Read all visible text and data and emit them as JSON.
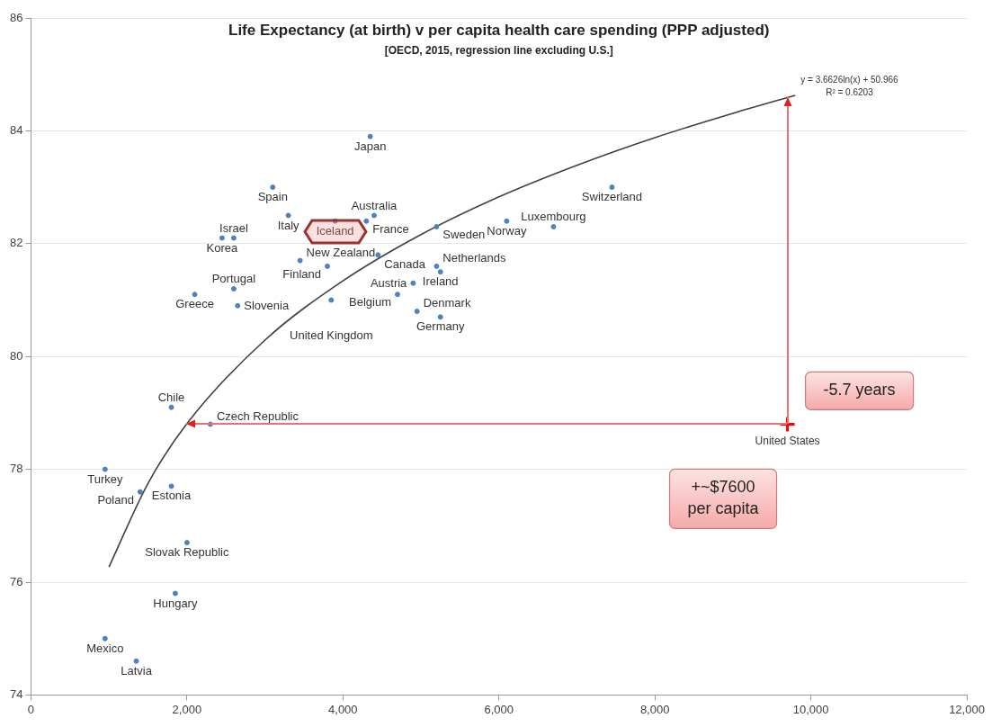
{
  "chart_data": {
    "type": "scatter",
    "title": "Life Expectancy (at birth) v per capita health care spending (PPP adjusted)",
    "subtitle": "[OECD, 2015, regression line excluding U.S.]",
    "series": [
      {
        "type": "scatter",
        "color": "#4f81bd",
        "marker": "circle",
        "x": [
          4350,
          3100,
          3300,
          3900,
          4400,
          4300,
          5200,
          6100,
          6700,
          7450,
          2450,
          2600,
          3450,
          3800,
          4450,
          5200,
          5250,
          4900,
          4700,
          3850,
          4950,
          5250,
          2600,
          2100,
          2650,
          1800,
          2300,
          950,
          1800,
          1400,
          2000,
          1850,
          950,
          1350
        ],
        "values": [
          83.9,
          83.0,
          82.5,
          82.4,
          82.5,
          82.4,
          82.3,
          82.4,
          82.3,
          83.0,
          82.1,
          82.1,
          81.7,
          81.6,
          81.8,
          81.6,
          81.5,
          81.3,
          81.1,
          81.0,
          80.8,
          80.7,
          81.2,
          81.1,
          80.9,
          79.1,
          78.8,
          78.0,
          77.7,
          77.6,
          76.7,
          75.8,
          75.0,
          74.6
        ],
        "value_labels": [
          "Japan",
          "Spain",
          "Italy",
          "Iceland",
          "Australia",
          "France",
          "Sweden",
          "Norway",
          "Luxembourg",
          "Switzerland",
          "Korea",
          "Israel",
          "New Zealand",
          "Finland",
          "Canada",
          "Netherlands",
          "Ireland",
          "Austria",
          "Belgium",
          "United Kingdom",
          "Denmark",
          "Germany",
          "Portugal",
          "Greece",
          "Slovenia",
          "Chile",
          "Czech Republic",
          "Turkey",
          "Estonia",
          "Poland",
          "Slovak Republic",
          "Hungary",
          "Mexico",
          "Latvia"
        ]
      },
      {
        "type": "scatter",
        "color": "#ff0000",
        "marker": "cross",
        "x": [
          9700
        ],
        "values": [
          78.8
        ],
        "value_labels": [
          "United States"
        ]
      },
      {
        "type": "line",
        "color": "#404040",
        "marker": "none",
        "x": [
          1000,
          1500,
          2000,
          3000,
          4000,
          5000,
          6000,
          7000,
          8000,
          9000,
          9800
        ],
        "values": [
          76.27,
          77.75,
          78.81,
          80.29,
          81.34,
          82.16,
          82.83,
          83.39,
          83.88,
          84.31,
          84.63
        ]
      }
    ],
    "annotations": [
      "y = 3.6626ln(x) + 50.966\nR² = 0.6203",
      "-5.7 years",
      "+~$7600\nper capita"
    ],
    "xlim": [
      0,
      12000
    ],
    "xticks": [
      0,
      {
        "value": 2000,
        "label": "2,000"
      },
      {
        "value": 4000,
        "label": "4,000"
      },
      {
        "value": 6000,
        "label": "6,000"
      },
      {
        "value": 8000,
        "label": "8,000"
      },
      {
        "value": 10000,
        "label": "10,000"
      },
      {
        "value": 12000,
        "label": "12,000"
      }
    ],
    "ylim": [
      74,
      86
    ],
    "yticks": [
      74,
      76,
      78,
      80,
      82,
      84,
      86
    ],
    "grid": "y",
    "legend": false
  }
}
